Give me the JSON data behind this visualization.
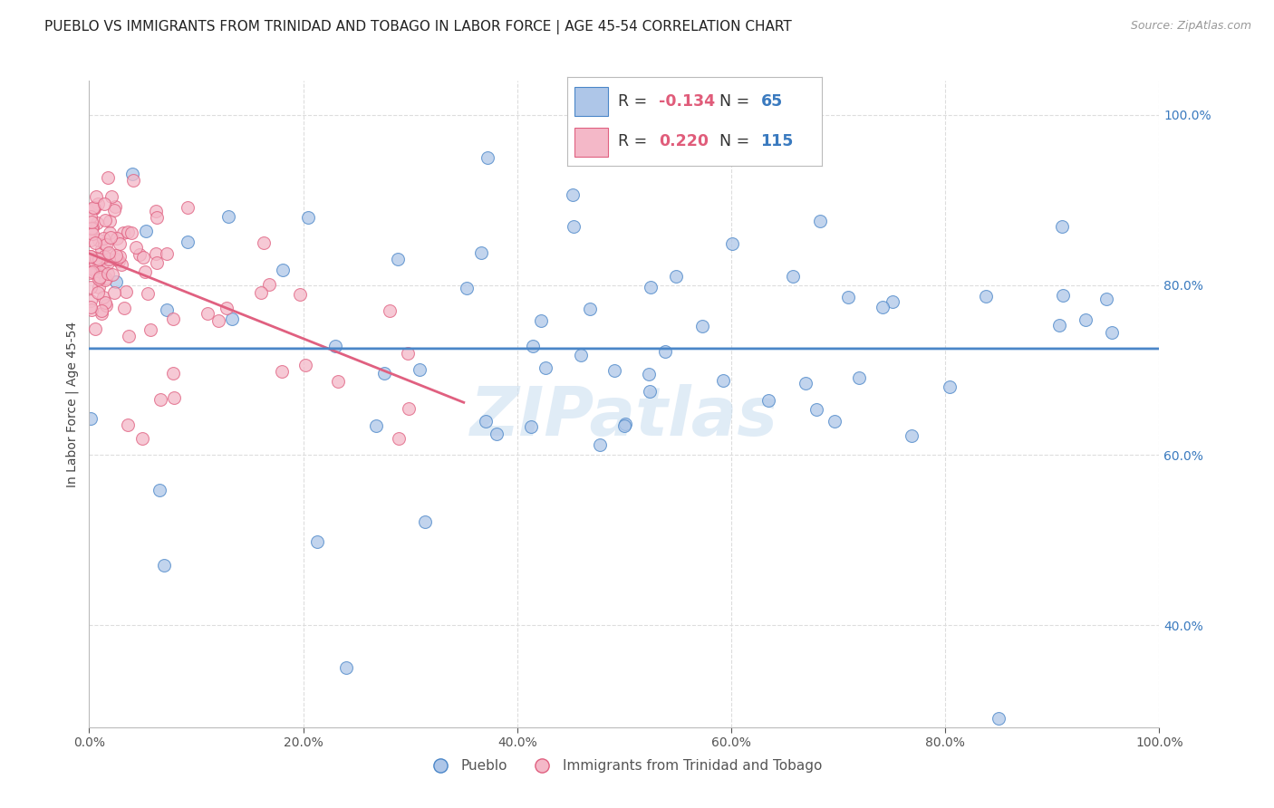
{
  "title": "PUEBLO VS IMMIGRANTS FROM TRINIDAD AND TOBAGO IN LABOR FORCE | AGE 45-54 CORRELATION CHART",
  "source": "Source: ZipAtlas.com",
  "ylabel": "In Labor Force | Age 45-54",
  "watermark": "ZIPatlas",
  "x_range": [
    0.0,
    1.0
  ],
  "y_range": [
    0.28,
    1.04
  ],
  "background_color": "#ffffff",
  "grid_color": "#dddddd",
  "scatter_blue_color": "#aec6e8",
  "scatter_pink_color": "#f4b8c8",
  "line_blue_color": "#4a86c8",
  "line_pink_color": "#e06080",
  "title_fontsize": 11,
  "source_fontsize": 9,
  "axis_label_fontsize": 10,
  "tick_fontsize": 10,
  "R_color": "#e05c7a",
  "N_color": "#3a7abf",
  "legend_R1": "-0.134",
  "legend_N1": "65",
  "legend_R2": "0.220",
  "legend_N2": "115",
  "legend_label1": "Pueblo",
  "legend_label2": "Immigrants from Trinidad and Tobago"
}
